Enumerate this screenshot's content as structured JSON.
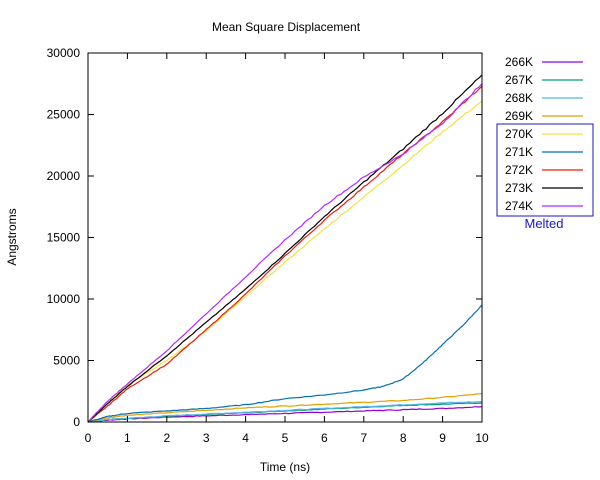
{
  "chart_data": {
    "type": "line",
    "title": "Mean Square Displacement",
    "xlabel": "Time (ns)",
    "ylabel": "Angstroms",
    "xlim": [
      0,
      10
    ],
    "ylim": [
      0,
      30000
    ],
    "x_ticks": [
      0,
      1,
      2,
      3,
      4,
      5,
      6,
      7,
      8,
      9,
      10
    ],
    "y_ticks": [
      0,
      5000,
      10000,
      15000,
      20000,
      25000,
      30000
    ],
    "grid": false,
    "legend_position": "outside-right",
    "legend_annotation": "Melted",
    "annotation_color": "#1818c8",
    "series": [
      {
        "name": "266K",
        "color": "#9400d3",
        "x": [
          0,
          0.5,
          1,
          2,
          3,
          4,
          5,
          6,
          7,
          8,
          9,
          10
        ],
        "y": [
          0,
          150,
          250,
          400,
          500,
          600,
          700,
          800,
          900,
          1000,
          1100,
          1250
        ]
      },
      {
        "name": "267K",
        "color": "#009e73",
        "x": [
          0,
          0.5,
          1,
          2,
          3,
          4,
          5,
          6,
          7,
          8,
          9,
          10
        ],
        "y": [
          0,
          200,
          300,
          450,
          600,
          750,
          900,
          1050,
          1200,
          1350,
          1450,
          1550
        ]
      },
      {
        "name": "268K",
        "color": "#56b4e9",
        "x": [
          0,
          0.5,
          1,
          2,
          3,
          4,
          5,
          6,
          7,
          8,
          9,
          10
        ],
        "y": [
          0,
          200,
          300,
          500,
          650,
          800,
          950,
          1100,
          1250,
          1400,
          1550,
          1650
        ]
      },
      {
        "name": "269K",
        "color": "#e69f00",
        "x": [
          0,
          0.5,
          1,
          2,
          3,
          4,
          5,
          6,
          7,
          8,
          9,
          10
        ],
        "y": [
          0,
          350,
          550,
          750,
          950,
          1150,
          1300,
          1450,
          1600,
          1750,
          2000,
          2300
        ]
      },
      {
        "name": "270K",
        "color": "#f0e442",
        "x": [
          0,
          0.5,
          1,
          2,
          3,
          4,
          5,
          6,
          7,
          8,
          9,
          10
        ],
        "y": [
          0,
          1700,
          3000,
          5000,
          7400,
          10200,
          13000,
          15700,
          18300,
          20900,
          23600,
          26100
        ]
      },
      {
        "name": "271K",
        "color": "#0072b2",
        "x": [
          0,
          0.5,
          1,
          2,
          3,
          4,
          5,
          6,
          7,
          7.5,
          8,
          8.5,
          9,
          9.5,
          10
        ],
        "y": [
          0,
          450,
          700,
          900,
          1100,
          1400,
          1900,
          2200,
          2600,
          2900,
          3500,
          4800,
          6300,
          7800,
          9500
        ]
      },
      {
        "name": "272K",
        "color": "#e51e10",
        "x": [
          0,
          0.5,
          1,
          2,
          3,
          4,
          5,
          6,
          7,
          8,
          9,
          10
        ],
        "y": [
          0,
          1300,
          2700,
          4700,
          7500,
          10400,
          13500,
          16400,
          19100,
          21800,
          24400,
          27300
        ]
      },
      {
        "name": "273K",
        "color": "#000000",
        "x": [
          0,
          0.5,
          1,
          2,
          3,
          4,
          5,
          6,
          7,
          8,
          9,
          10
        ],
        "y": [
          0,
          1500,
          2900,
          5400,
          8100,
          10800,
          13700,
          16700,
          19500,
          22200,
          25100,
          28200
        ]
      },
      {
        "name": "274K",
        "color": "#b02bff",
        "x": [
          0,
          0.5,
          1,
          2,
          3,
          4,
          5,
          6,
          7,
          8,
          9,
          10
        ],
        "y": [
          0,
          1700,
          3100,
          5800,
          8800,
          11800,
          14800,
          17600,
          19900,
          21800,
          24300,
          27500
        ]
      }
    ],
    "melted_series": [
      "270K",
      "271K",
      "272K",
      "273K",
      "274K"
    ]
  }
}
